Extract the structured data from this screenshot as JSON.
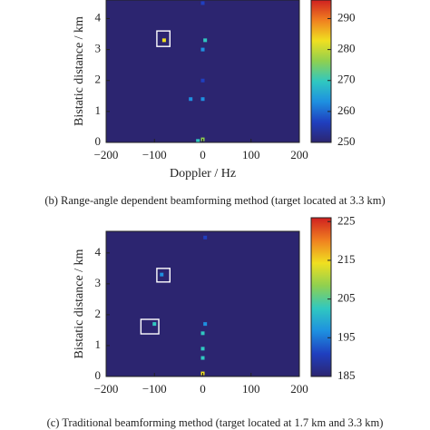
{
  "chart_data": [
    {
      "type": "heatmap",
      "xlabel": "Doppler / Hz",
      "ylabel": "Bistatic distance / km",
      "xlim": [
        -200,
        200
      ],
      "ylim": [
        0,
        4.6
      ],
      "xticks": [
        {
          "value": -200,
          "label": "−200"
        },
        {
          "value": -100,
          "label": "−100"
        },
        0,
        100,
        200
      ],
      "yticks": [
        0,
        1,
        2,
        3,
        4
      ],
      "clim": [
        250,
        296
      ],
      "cticks": [
        250,
        260,
        270,
        280,
        290
      ],
      "colormap": [
        "#2c2570",
        "#1f3fbf",
        "#1e90e0",
        "#30c8c0",
        "#8fd050",
        "#f0e020",
        "#f08020",
        "#d02020"
      ],
      "background": "#2c2570",
      "spots": [
        {
          "x": -80,
          "y": 3.3,
          "value": 285
        },
        {
          "x": 5,
          "y": 3.3,
          "value": 270
        },
        {
          "x": 0,
          "y": 0.1,
          "value": 278
        },
        {
          "x": 0,
          "y": 1.4,
          "value": 264
        },
        {
          "x": -25,
          "y": 1.4,
          "value": 260
        },
        {
          "x": 0,
          "y": 2.0,
          "value": 258
        },
        {
          "x": 0,
          "y": 3.0,
          "value": 262
        },
        {
          "x": 0,
          "y": 4.5,
          "value": 258
        },
        {
          "x": -10,
          "y": 0.05,
          "value": 272
        }
      ],
      "boxes": [
        {
          "x": [
            -95,
            -68
          ],
          "y": [
            3.1,
            3.6
          ]
        }
      ],
      "caption": "(b) Range-angle dependent beamforming method (target located at 3.3 km)"
    },
    {
      "type": "heatmap",
      "ylabel": "Bistatic distance / km",
      "xlim": [
        -200,
        200
      ],
      "ylim": [
        0,
        4.7
      ],
      "xticks": [
        {
          "value": -200,
          "label": "−200"
        },
        {
          "value": -100,
          "label": "−100"
        },
        0,
        100,
        200
      ],
      "yticks": [
        0,
        1,
        2,
        3,
        4
      ],
      "clim": [
        185,
        226
      ],
      "cticks": [
        185,
        195,
        205,
        215,
        225
      ],
      "colormap": [
        "#2c2570",
        "#1f3fbf",
        "#1e90e0",
        "#30c8c0",
        "#8fd050",
        "#f0e020",
        "#f08020",
        "#d02020"
      ],
      "background": "#2c2570",
      "spots": [
        {
          "x": -100,
          "y": 1.7,
          "value": 200
        },
        {
          "x": -85,
          "y": 3.3,
          "value": 196
        },
        {
          "x": 0,
          "y": 0.1,
          "value": 215
        },
        {
          "x": 0,
          "y": 0.9,
          "value": 205
        },
        {
          "x": 0,
          "y": 0.6,
          "value": 202
        },
        {
          "x": 0,
          "y": 1.4,
          "value": 200
        },
        {
          "x": 5,
          "y": 1.7,
          "value": 198
        },
        {
          "x": 5,
          "y": 4.5,
          "value": 192
        }
      ],
      "boxes": [
        {
          "x": [
            -95,
            -68
          ],
          "y": [
            3.06,
            3.5
          ]
        },
        {
          "x": [
            -128,
            -91
          ],
          "y": [
            1.38,
            1.85
          ]
        }
      ],
      "caption": "(c) Traditional beamforming method (target located at 1.7 km and 3.3 km)"
    }
  ]
}
